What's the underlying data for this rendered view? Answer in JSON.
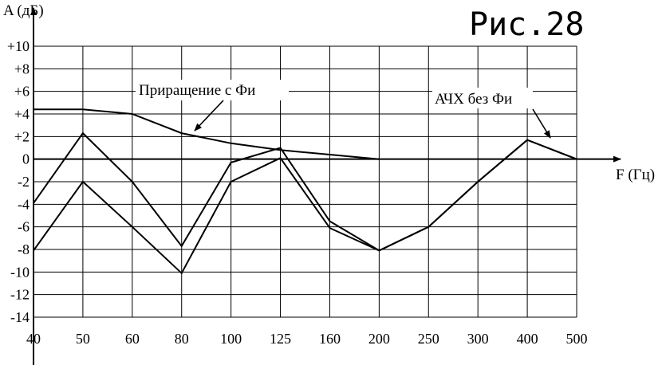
{
  "figure_label": "Рис.28",
  "chart_data": {
    "type": "line",
    "xlabel": "F (Гц)",
    "ylabel": "A (дБ)",
    "categories": [
      "40",
      "50",
      "60",
      "80",
      "100",
      "125",
      "160",
      "200",
      "250",
      "300",
      "400",
      "500"
    ],
    "yticks": [
      "+10",
      "+8",
      "+6",
      "+4",
      "+2",
      "0",
      "-2",
      "-4",
      "-6",
      "-8",
      "-10",
      "-12",
      "-14"
    ],
    "ylim": [
      -14,
      10
    ],
    "grid": true,
    "series": [
      {
        "values": [
          4.4,
          4.4,
          4.0,
          2.3,
          1.4,
          0.8,
          0.4,
          0.0,
          null,
          null,
          null,
          null
        ]
      },
      {
        "values": [
          -3.9,
          2.3,
          -2.0,
          -7.7,
          -0.3,
          1.0,
          -5.5,
          -8.1,
          -6.0,
          -2.0,
          1.7,
          0.0
        ]
      },
      {
        "values": [
          -8.1,
          -2.0,
          -6.0,
          -10.1,
          -2.0,
          0.1,
          -6.1,
          -8.1,
          -6.0,
          -2.0,
          1.7,
          0.0
        ]
      }
    ],
    "annotations": [
      {
        "text": "Приращение с Фи",
        "points_to": {
          "x": "80",
          "y": 2.3
        }
      },
      {
        "text": "АЧХ без Фи",
        "points_to": {
          "x": "400",
          "y": 1.7
        }
      }
    ]
  }
}
